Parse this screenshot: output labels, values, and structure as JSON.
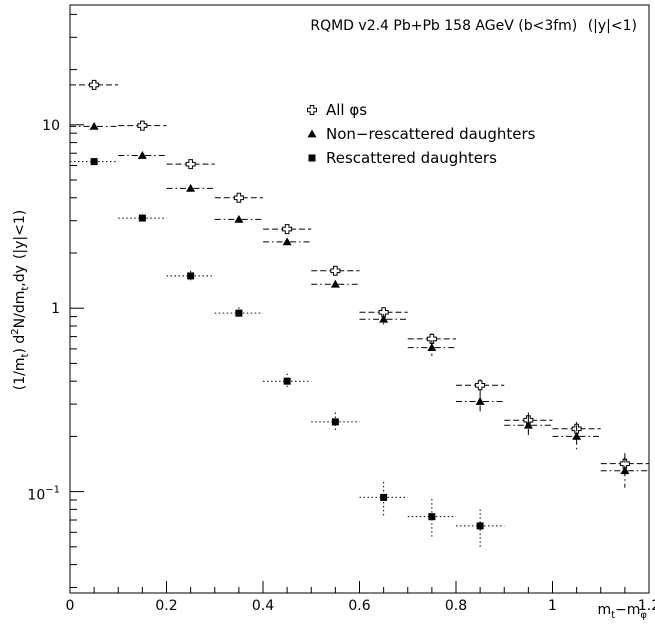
{
  "chart_data": {
    "type": "scatter",
    "title": "RQMD v2.4 Pb+Pb 158 AGeV (b<3fm)",
    "title_y_part": "(|y|<1)",
    "xlabel": "m",
    "xlabel_sub_t": "t",
    "xlabel_dash": "−m",
    "xlabel_sub_phi": "φ",
    "ylabel": "(1/m",
    "ylabel_sub_t": "t",
    "ylabel_mid": ") d",
    "ylabel_sup_2": "2",
    "ylabel_mid2": "N/dm",
    "ylabel_sub_t2": "t",
    "ylabel_end": ",dy",
    "xlim": [
      0,
      1.2
    ],
    "ylim": [
      0.028,
      45
    ],
    "y_scale": "log",
    "grid": false,
    "legend_position": "center-right",
    "x_ticks": [
      "0",
      "0.2",
      "0.4",
      "0.6",
      "0.8",
      "1",
      "1.2"
    ],
    "y_ticks": [
      "1",
      "10"
    ],
    "y_tick_exp_base": "10",
    "y_tick_exp_power": "−1",
    "series": [
      {
        "name": "All φs",
        "marker": "open-cross",
        "x": [
          0.05,
          0.15,
          0.25,
          0.35,
          0.45,
          0.55,
          0.65,
          0.75,
          0.85,
          0.95,
          1.05,
          1.15
        ],
        "y": [
          16.5,
          9.9,
          6.1,
          4.0,
          2.7,
          1.6,
          0.95,
          0.68,
          0.38,
          0.245,
          0.22,
          0.142
        ],
        "y_err": [
          0.4,
          0.3,
          0.2,
          0.15,
          0.1,
          0.07,
          0.05,
          0.05,
          0.03,
          0.025,
          0.02,
          0.02
        ]
      },
      {
        "name": "Non−rescattered daughters",
        "marker": "filled-triangle",
        "x": [
          0.05,
          0.15,
          0.25,
          0.35,
          0.45,
          0.55,
          0.65,
          0.75,
          0.85,
          0.95,
          1.05,
          1.15
        ],
        "y": [
          9.8,
          6.8,
          4.5,
          3.05,
          2.3,
          1.35,
          0.87,
          0.61,
          0.31,
          0.23,
          0.2,
          0.13
        ],
        "y_err": [
          0.3,
          0.25,
          0.2,
          0.12,
          0.1,
          0.07,
          0.06,
          0.06,
          0.04,
          0.03,
          0.03,
          0.025
        ]
      },
      {
        "name": "Rescattered daughters",
        "marker": "filled-square",
        "x": [
          0.05,
          0.15,
          0.25,
          0.35,
          0.45,
          0.55,
          0.65,
          0.75,
          0.85
        ],
        "y": [
          6.3,
          3.1,
          1.5,
          0.94,
          0.4,
          0.24,
          0.093,
          0.073,
          0.065
        ],
        "y_err": [
          0.2,
          0.15,
          0.1,
          0.07,
          0.04,
          0.03,
          0.02,
          0.018,
          0.015
        ]
      }
    ]
  },
  "colors": {
    "foreground": "#000000",
    "background": "#ffffff"
  }
}
